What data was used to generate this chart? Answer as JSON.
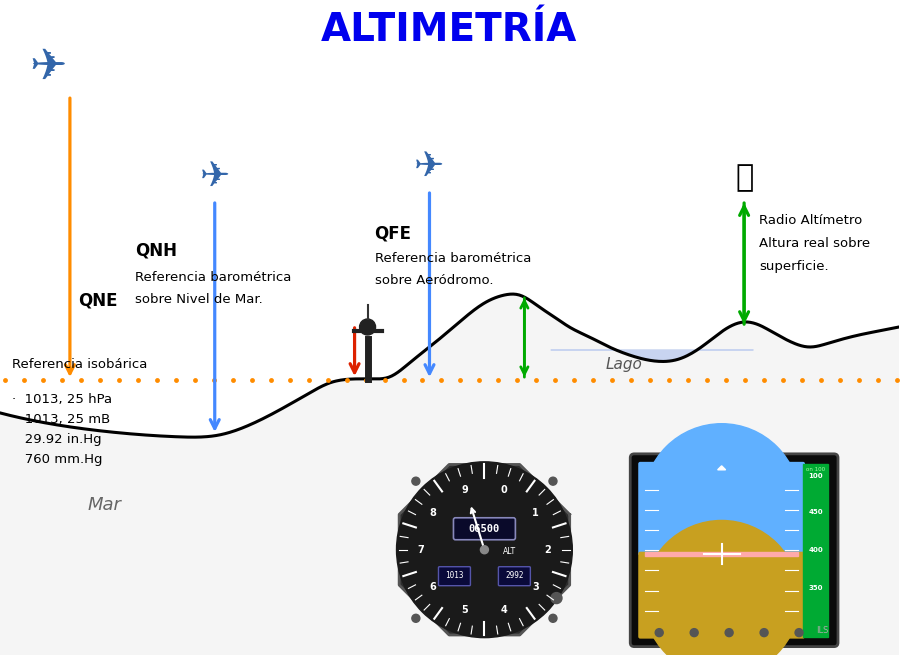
{
  "title": "ALTIMETRÍA",
  "title_color": "#0000EE",
  "bg_color": "#FFFFFF",
  "dotted_color": "#FF8C00",
  "sea_color": "#C8D4F0",
  "lago_color": "#C8D4F0",
  "sea_label": "Mar",
  "lago_label": "Lago",
  "qne_label": "QNE",
  "qnh_label": "QNH",
  "qfe_label": "QFE",
  "radio_label1": "Radio Altímetro",
  "radio_label2": "Altura real sobre",
  "radio_label3": "superficie.",
  "qnh_sub1": "Referencia barométrica",
  "qnh_sub2": "sobre Nivel de Mar.",
  "qfe_sub1": "Referencia barométrica",
  "qfe_sub2": "sobre Aeródromo.",
  "ref_label": "Referencia isobárica",
  "ref_line1": "·  1013, 25 hPa",
  "ref_line2": "   1013, 25 mB",
  "ref_line3": "   29.92 in.Hg",
  "ref_line4": "   760 mm.Hg",
  "orange_color": "#FF8C00",
  "blue_color": "#4488FF",
  "red_color": "#DD2200",
  "green_color": "#00AA00",
  "black_color": "#111111"
}
